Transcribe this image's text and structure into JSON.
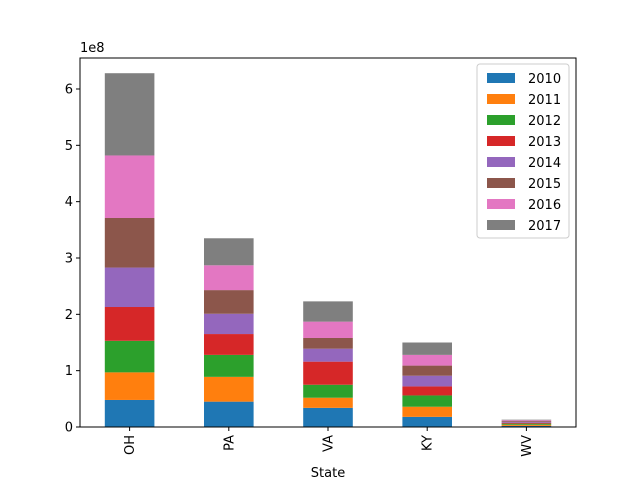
{
  "chart_data": {
    "type": "bar",
    "stacked": true,
    "categories": [
      "OH",
      "PA",
      "VA",
      "KY",
      "WV"
    ],
    "xlabel": "State",
    "ylabel": "",
    "y_offset_text": "1e8",
    "ylim": [
      0,
      655000000
    ],
    "yticks": [
      0,
      100000000,
      200000000,
      300000000,
      400000000,
      500000000,
      600000000
    ],
    "ytick_labels": [
      "0",
      "1",
      "2",
      "3",
      "4",
      "5",
      "6"
    ],
    "legend_position": "upper-right",
    "series": [
      {
        "name": "2010",
        "color": "#1f77b4",
        "values": [
          48000000,
          45000000,
          34000000,
          18000000,
          2000000
        ]
      },
      {
        "name": "2011",
        "color": "#ff7f0e",
        "values": [
          49000000,
          44000000,
          18000000,
          18000000,
          2000000
        ]
      },
      {
        "name": "2012",
        "color": "#2ca02c",
        "values": [
          56000000,
          39000000,
          23000000,
          20000000,
          2000000
        ]
      },
      {
        "name": "2013",
        "color": "#d62728",
        "values": [
          60000000,
          37000000,
          41000000,
          16000000,
          1500000
        ]
      },
      {
        "name": "2014",
        "color": "#9467bd",
        "values": [
          70000000,
          36000000,
          23000000,
          19000000,
          1500000
        ]
      },
      {
        "name": "2015",
        "color": "#8c564b",
        "values": [
          88000000,
          42000000,
          19000000,
          18000000,
          1500000
        ]
      },
      {
        "name": "2016",
        "color": "#e377c2",
        "values": [
          111000000,
          44000000,
          29000000,
          19000000,
          1500000
        ]
      },
      {
        "name": "2017",
        "color": "#7f7f7f",
        "values": [
          146000000,
          48000000,
          36000000,
          22000000,
          1000000
        ]
      }
    ]
  }
}
